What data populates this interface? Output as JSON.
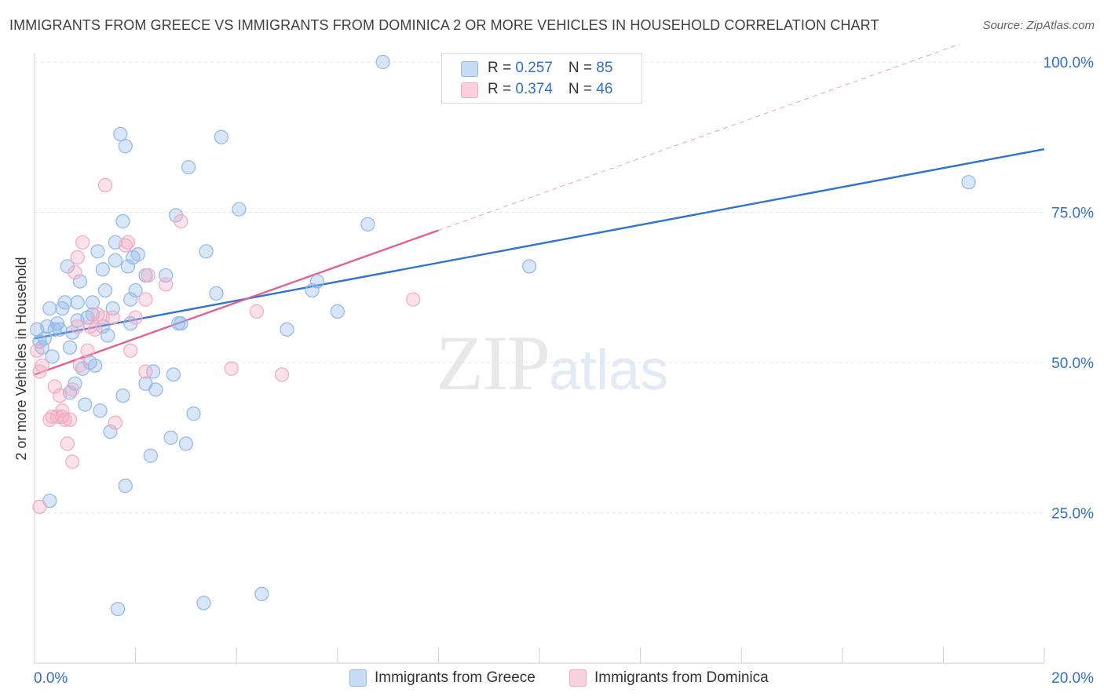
{
  "title": "IMMIGRANTS FROM GREECE VS IMMIGRANTS FROM DOMINICA 2 OR MORE VEHICLES IN HOUSEHOLD CORRELATION CHART",
  "source": "Source: ZipAtlas.com",
  "watermark": {
    "zip": "ZIP",
    "atlas": "atlas"
  },
  "legend": {
    "rows": [
      {
        "r_label": "R = ",
        "r_value": "0.257",
        "n_label": "N = ",
        "n_value": "85"
      },
      {
        "r_label": "R = ",
        "r_value": "0.374",
        "n_label": "N = ",
        "n_value": "46"
      }
    ]
  },
  "chart_data": {
    "type": "scatter",
    "xlabel": "",
    "ylabel": "2 or more Vehicles in Household",
    "xlim": [
      0,
      20
    ],
    "ylim": [
      0,
      100
    ],
    "x_tick_labels": {
      "left": "0.0%",
      "right": "20.0%"
    },
    "y_ticks": [
      {
        "value": 100,
        "label": "100.0%"
      },
      {
        "value": 75,
        "label": "75.0%"
      },
      {
        "value": 50,
        "label": "50.0%"
      },
      {
        "value": 25,
        "label": "25.0%"
      }
    ],
    "colors": {
      "greece": "#8fb7e8",
      "greece_line": "#2f74d0",
      "dominica": "#f3a8c0",
      "dominica_line": "#e0608e",
      "grid": "#e3e3e3",
      "tick_label": "#2f6fcb"
    },
    "series": [
      {
        "name": "Immigrants from Greece",
        "key": "greece",
        "points": [
          [
            0.05,
            55.5
          ],
          [
            0.1,
            53.5
          ],
          [
            0.15,
            52.5
          ],
          [
            0.2,
            54
          ],
          [
            0.25,
            56
          ],
          [
            0.3,
            27
          ],
          [
            0.3,
            59
          ],
          [
            0.35,
            51
          ],
          [
            0.4,
            55.5
          ],
          [
            0.45,
            56.5
          ],
          [
            0.5,
            55.5
          ],
          [
            0.55,
            59
          ],
          [
            0.6,
            60
          ],
          [
            0.65,
            66
          ],
          [
            0.7,
            52.5
          ],
          [
            0.7,
            45
          ],
          [
            0.75,
            55
          ],
          [
            0.8,
            46.5
          ],
          [
            0.85,
            60
          ],
          [
            0.85,
            57
          ],
          [
            0.9,
            63.5
          ],
          [
            0.95,
            49
          ],
          [
            1.0,
            43
          ],
          [
            1.05,
            57.5
          ],
          [
            1.1,
            50
          ],
          [
            1.15,
            58
          ],
          [
            1.15,
            60
          ],
          [
            1.2,
            49.5
          ],
          [
            1.25,
            68.5
          ],
          [
            1.3,
            42
          ],
          [
            1.35,
            56
          ],
          [
            1.35,
            65.5
          ],
          [
            1.4,
            62
          ],
          [
            1.45,
            54.5
          ],
          [
            1.5,
            38.5
          ],
          [
            1.55,
            59
          ],
          [
            1.6,
            70
          ],
          [
            1.6,
            67
          ],
          [
            1.65,
            9
          ],
          [
            1.7,
            88
          ],
          [
            1.75,
            73.5
          ],
          [
            1.75,
            44.5
          ],
          [
            1.8,
            29.5
          ],
          [
            1.8,
            86
          ],
          [
            1.85,
            66
          ],
          [
            1.9,
            56.5
          ],
          [
            1.9,
            60.5
          ],
          [
            1.95,
            67.5
          ],
          [
            2.0,
            62
          ],
          [
            2.05,
            68
          ],
          [
            2.2,
            64.5
          ],
          [
            2.2,
            46.5
          ],
          [
            2.3,
            34.5
          ],
          [
            2.35,
            48.5
          ],
          [
            2.4,
            45.5
          ],
          [
            2.6,
            64.5
          ],
          [
            2.7,
            37.5
          ],
          [
            2.75,
            48
          ],
          [
            2.8,
            74.5
          ],
          [
            2.85,
            56.5
          ],
          [
            2.9,
            56.5
          ],
          [
            3.0,
            36.5
          ],
          [
            3.05,
            82.5
          ],
          [
            3.15,
            41.5
          ],
          [
            3.35,
            10
          ],
          [
            3.4,
            68.5
          ],
          [
            3.6,
            61.5
          ],
          [
            3.7,
            87.5
          ],
          [
            4.05,
            75.5
          ],
          [
            4.5,
            11.5
          ],
          [
            5.0,
            55.5
          ],
          [
            5.5,
            62
          ],
          [
            5.6,
            63.5
          ],
          [
            6.0,
            58.5
          ],
          [
            6.6,
            73
          ],
          [
            6.9,
            100
          ],
          [
            9.8,
            66
          ],
          [
            18.5,
            80
          ]
        ],
        "trend": {
          "x1": 0,
          "y1": 54,
          "x2": 20,
          "y2": 85.5
        }
      },
      {
        "name": "Immigrants from Dominica",
        "key": "dominica",
        "points": [
          [
            0.05,
            52
          ],
          [
            0.1,
            26
          ],
          [
            0.1,
            48.5
          ],
          [
            0.15,
            49.5
          ],
          [
            0.3,
            40.5
          ],
          [
            0.35,
            41
          ],
          [
            0.4,
            46
          ],
          [
            0.45,
            41
          ],
          [
            0.5,
            44.5
          ],
          [
            0.55,
            41
          ],
          [
            0.55,
            42
          ],
          [
            0.6,
            40.5
          ],
          [
            0.65,
            36.5
          ],
          [
            0.7,
            40.5
          ],
          [
            0.75,
            45.5
          ],
          [
            0.75,
            33.5
          ],
          [
            0.8,
            65
          ],
          [
            0.85,
            56
          ],
          [
            0.85,
            67.5
          ],
          [
            0.9,
            49.5
          ],
          [
            0.95,
            70
          ],
          [
            1.05,
            52
          ],
          [
            1.1,
            56
          ],
          [
            1.2,
            55.5
          ],
          [
            1.25,
            58
          ],
          [
            1.35,
            57.5
          ],
          [
            1.4,
            79.5
          ],
          [
            1.55,
            57.5
          ],
          [
            1.6,
            40
          ],
          [
            1.8,
            69.5
          ],
          [
            1.85,
            70
          ],
          [
            1.9,
            52
          ],
          [
            2.0,
            57.5
          ],
          [
            2.2,
            48.5
          ],
          [
            2.2,
            60.5
          ],
          [
            2.25,
            64.5
          ],
          [
            2.6,
            63
          ],
          [
            2.9,
            73.5
          ],
          [
            3.9,
            49
          ],
          [
            4.4,
            58.5
          ],
          [
            4.9,
            48
          ],
          [
            7.5,
            60.5
          ]
        ],
        "trend": {
          "x1": 0,
          "y1": 48,
          "x2": 8,
          "y2": 72
        },
        "trend_dashed": {
          "x1": 8,
          "y1": 72,
          "x2": 20,
          "y2": 108
        }
      }
    ],
    "legend_placement": "top-center"
  }
}
